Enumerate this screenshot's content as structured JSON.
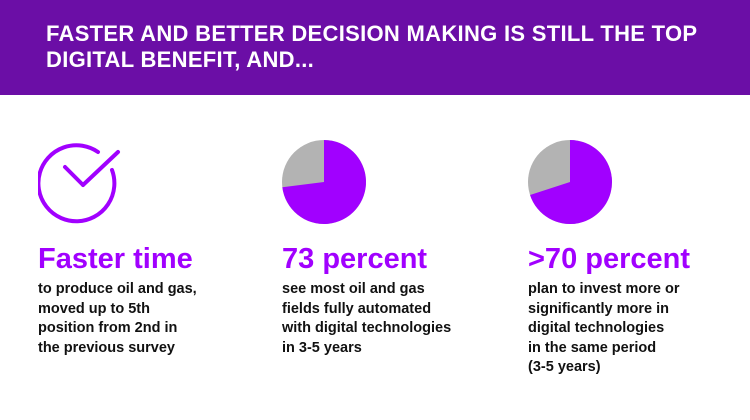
{
  "banner": {
    "title": "FASTER AND BETTER DECISION MAKING IS STILL THE TOP DIGITAL BENEFIT, AND..."
  },
  "colors": {
    "banner_bg": "#6b0ea6",
    "accent": "#a100ff",
    "pie_rest": "#b3b3b3",
    "text": "#111111"
  },
  "stats": [
    {
      "icon": "clock-check-icon",
      "headline": "Faster time",
      "description": "to produce oil and gas,\nmoved up to 5th\nposition from 2nd in\nthe previous survey"
    },
    {
      "icon": "pie-chart-icon",
      "percent": 73,
      "headline": "73 percent",
      "description": "see most oil and gas\nfields fully automated\nwith digital technologies\nin 3-5 years"
    },
    {
      "icon": "pie-chart-icon",
      "percent": 70,
      "headline": ">70 percent",
      "description": "plan to invest more or\nsignificantly more in\ndigital technologies\n in the same period\n(3-5 years)"
    }
  ]
}
